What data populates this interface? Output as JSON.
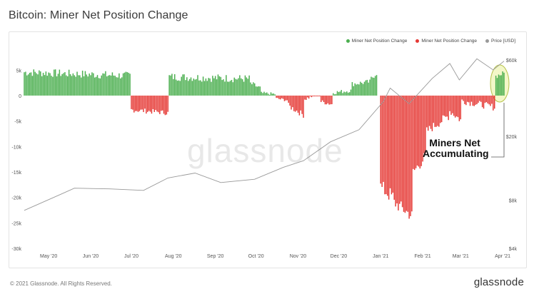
{
  "header": {
    "title": "Bitcoin: Miner Net Position Change"
  },
  "footer": {
    "copyright": "© 2021 Glassnode. All Rights Reserved.",
    "brand": "glassnode"
  },
  "watermark": "glassnode",
  "annotation": {
    "line1": "Miners Net",
    "line2": "Accumulating"
  },
  "colors": {
    "positive": "#4caf50",
    "negative": "#e53935",
    "price": "#999999",
    "highlight_fill": "#f3f7c8",
    "highlight_stroke": "#b6c24a"
  },
  "chart_data": {
    "type": "bar",
    "title": "Bitcoin: Miner Net Position Change",
    "legend": [
      "Miner Net Position Change",
      "Miner Net Position Change",
      "Price [USD]"
    ],
    "legend_placement": "top-right",
    "grid": false,
    "x_range": [
      "2020-04-13",
      "2021-04-02"
    ],
    "x_ticks": [
      "May '20",
      "Jun '20",
      "Jul '20",
      "Aug '20",
      "Sep '20",
      "Oct '20",
      "Nov '20",
      "Dec '20",
      "Jan '21",
      "Feb '21",
      "Mar '21",
      "Apr '21"
    ],
    "x_tick_dates": [
      "2020-05-01",
      "2020-06-01",
      "2020-07-01",
      "2020-08-01",
      "2020-09-01",
      "2020-10-01",
      "2020-11-01",
      "2020-12-01",
      "2021-01-01",
      "2021-02-01",
      "2021-03-01",
      "2021-04-01"
    ],
    "y_left": {
      "ylim": [
        -30000,
        7000
      ],
      "ticks": [
        5000,
        0,
        -5000,
        -10000,
        -15000,
        -20000,
        -25000,
        -30000
      ],
      "tick_labels": [
        "5k",
        "0",
        "-5k",
        "-10k",
        "-15k",
        "-20k",
        "-25k",
        "-30k"
      ]
    },
    "y_right": {
      "scale": "log",
      "ticks": [
        60000,
        20000,
        8000,
        4000
      ],
      "tick_labels": [
        "$60k",
        "$20k",
        "$8k",
        "$4k"
      ]
    },
    "bar_segments": [
      {
        "start": "2020-04-13",
        "end": "2020-06-30",
        "from": 4600,
        "to": 3900,
        "jitter": 800
      },
      {
        "start": "2020-07-01",
        "end": "2020-07-28",
        "from": -2800,
        "to": -3400,
        "jitter": 500
      },
      {
        "start": "2020-07-29",
        "end": "2020-09-26",
        "from": 3700,
        "to": 3300,
        "jitter": 800
      },
      {
        "start": "2020-09-27",
        "end": "2020-10-04",
        "from": 2400,
        "to": 1500,
        "jitter": 500
      },
      {
        "start": "2020-10-05",
        "end": "2020-10-15",
        "from": 500,
        "to": 300,
        "jitter": 300
      },
      {
        "start": "2020-10-16",
        "end": "2020-10-24",
        "from": -600,
        "to": -900,
        "jitter": 300
      },
      {
        "start": "2020-10-25",
        "end": "2020-11-05",
        "from": -2000,
        "to": -3800,
        "jitter": 600
      },
      {
        "start": "2020-11-06",
        "end": "2020-11-17",
        "from": -700,
        "to": 500,
        "jitter": 400
      },
      {
        "start": "2020-11-18",
        "end": "2020-11-26",
        "from": -1200,
        "to": -1700,
        "jitter": 400
      },
      {
        "start": "2020-11-27",
        "end": "2020-12-10",
        "from": 600,
        "to": 1000,
        "jitter": 400
      },
      {
        "start": "2020-12-11",
        "end": "2020-12-24",
        "from": 2300,
        "to": 2700,
        "jitter": 500
      },
      {
        "start": "2020-12-25",
        "end": "2020-12-29",
        "from": 3400,
        "to": 4400,
        "jitter": 500
      },
      {
        "start": "2021-01-01",
        "end": "2021-01-10",
        "from": -18000,
        "to": -20000,
        "jitter": 1600
      },
      {
        "start": "2021-01-11",
        "end": "2021-01-24",
        "from": -21000,
        "to": -23600,
        "jitter": 1300
      },
      {
        "start": "2021-01-25",
        "end": "2021-02-03",
        "from": -15000,
        "to": -12000,
        "jitter": 1200
      },
      {
        "start": "2021-02-04",
        "end": "2021-02-20",
        "from": -7000,
        "to": -4000,
        "jitter": 900
      },
      {
        "start": "2021-02-21",
        "end": "2021-03-01",
        "from": -3000,
        "to": -4800,
        "jitter": 800
      },
      {
        "start": "2021-03-02",
        "end": "2021-03-26",
        "from": -1000,
        "to": -2300,
        "jitter": 700
      },
      {
        "start": "2021-03-27",
        "end": "2021-04-02",
        "from": 3800,
        "to": 4400,
        "jitter": 500
      }
    ],
    "price_series": {
      "x": [
        "2020-04-13",
        "2020-05-10",
        "2020-05-20",
        "2020-06-15",
        "2020-07-10",
        "2020-07-28",
        "2020-08-17",
        "2020-09-05",
        "2020-09-30",
        "2020-10-21",
        "2020-11-05",
        "2020-11-25",
        "2020-12-16",
        "2021-01-03",
        "2021-01-08",
        "2021-01-22",
        "2021-02-08",
        "2021-02-21",
        "2021-02-28",
        "2021-03-13",
        "2021-03-25",
        "2021-04-02"
      ],
      "y": [
        6900,
        8700,
        9500,
        9400,
        9200,
        11000,
        11800,
        10300,
        10800,
        12800,
        14100,
        18500,
        22000,
        33000,
        40000,
        32000,
        46000,
        57000,
        45000,
        61000,
        52000,
        59000
      ]
    }
  }
}
